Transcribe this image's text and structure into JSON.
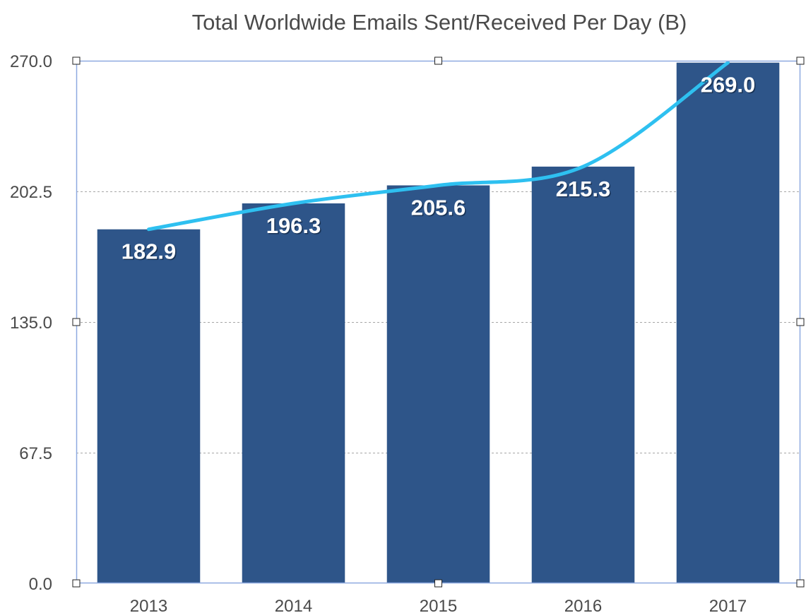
{
  "chart_data": {
    "type": "bar",
    "title": "Total Worldwide Emails Sent/Received Per Day (B)",
    "xlabel": "",
    "ylabel": "",
    "categories": [
      "2013",
      "2014",
      "2015",
      "2016",
      "2017"
    ],
    "values": [
      182.9,
      196.3,
      205.6,
      215.3,
      269.0
    ],
    "data_labels": [
      "182.9",
      "196.3",
      "205.6",
      "215.3",
      "269.0"
    ],
    "ylim": [
      0,
      270
    ],
    "yticks": [
      0,
      67.5,
      135,
      202.5,
      270
    ],
    "ytick_labels": [
      "0.0",
      "67.5",
      "135.0",
      "202.5",
      "270.0"
    ],
    "grid": true,
    "legend": "none",
    "trendline": {
      "type": "curve",
      "follows": "values"
    },
    "colors": {
      "bar": "#2e5589",
      "trendline": "#2ec0f0",
      "gridline": "#a6a6a6",
      "selection_frame": "#8ea9e0",
      "title_text": "#4a4a4a",
      "tick_text": "#4a4a4a",
      "data_label_text": "#ffffff"
    }
  }
}
